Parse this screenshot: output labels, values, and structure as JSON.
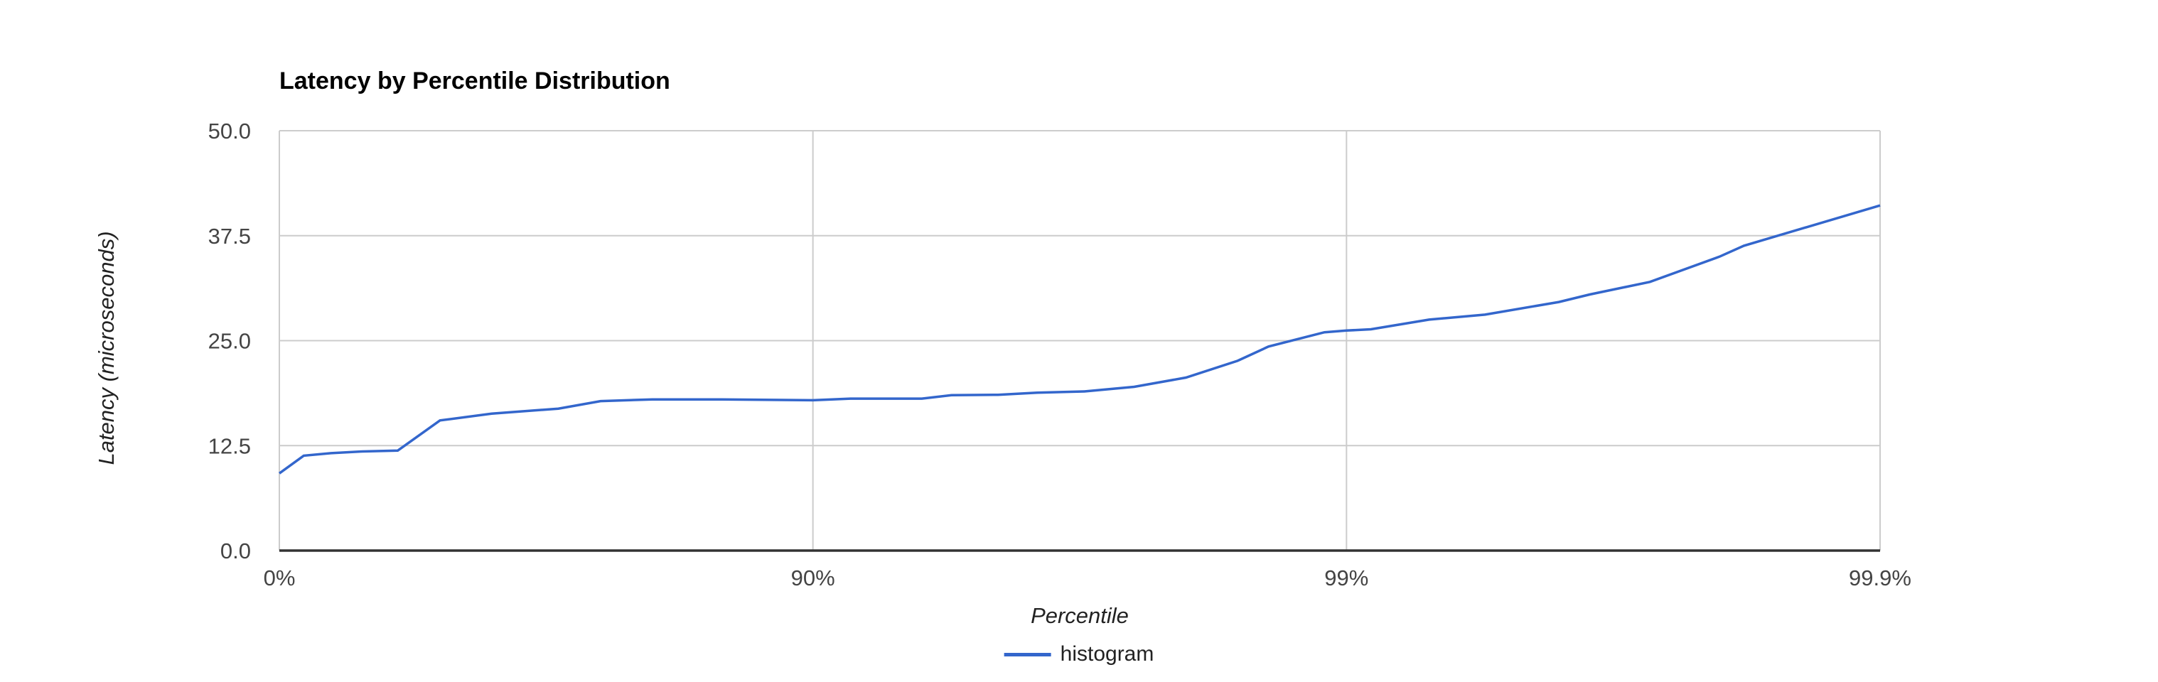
{
  "chart_data": {
    "type": "line",
    "title": "Latency by Percentile Distribution",
    "xlabel": "Percentile",
    "ylabel": "Latency (microseconds)",
    "x_scale": "logarithmic-percentile (equal spacing per decade of 1/(1-p))",
    "x_tick_labels": [
      "0%",
      "90%",
      "99%",
      "99.9%"
    ],
    "y_ticks": [
      0,
      12.5,
      25,
      37.5,
      50
    ],
    "y_tick_labels": [
      "0.0",
      "12.5",
      "25.0",
      "37.5",
      "50.0"
    ],
    "ylim": [
      0,
      50
    ],
    "grid": true,
    "legend_position": "bottom-center",
    "series": [
      {
        "name": "histogram",
        "color": "#3366CC",
        "points_format": "[percentile, latency_microseconds]",
        "points": [
          [
            0,
            9.2
          ],
          [
            10,
            11.3
          ],
          [
            20,
            11.6
          ],
          [
            30,
            11.8
          ],
          [
            40,
            11.9
          ],
          [
            50,
            15.5
          ],
          [
            60,
            16.3
          ],
          [
            70,
            16.9
          ],
          [
            75,
            17.8
          ],
          [
            80,
            18.0
          ],
          [
            85,
            18.0
          ],
          [
            90,
            17.9
          ],
          [
            91.5,
            18.1
          ],
          [
            93.75,
            18.1
          ],
          [
            94.5,
            18.5
          ],
          [
            95.5,
            18.55
          ],
          [
            96.2,
            18.8
          ],
          [
            96.9,
            18.95
          ],
          [
            97.5,
            19.5
          ],
          [
            98.0,
            20.6
          ],
          [
            98.4,
            22.6
          ],
          [
            98.6,
            24.3
          ],
          [
            98.9,
            26.0
          ],
          [
            99.0,
            26.2
          ],
          [
            99.1,
            26.35
          ],
          [
            99.3,
            27.5
          ],
          [
            99.45,
            28.1
          ],
          [
            99.6,
            29.6
          ],
          [
            99.65,
            30.5
          ],
          [
            99.73,
            32.0
          ],
          [
            99.8,
            35.0
          ],
          [
            99.82,
            36.3
          ],
          [
            99.9,
            41.1
          ]
        ]
      }
    ]
  }
}
